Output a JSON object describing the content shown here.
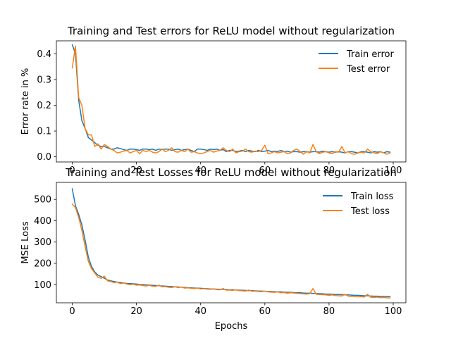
{
  "chart_data": [
    {
      "type": "line",
      "title": "Training and Test errors for ReLU model without regularization",
      "xlabel": "",
      "ylabel": "Error rate in %",
      "xlim": [
        -4.95,
        103.95
      ],
      "ylim": [
        -0.02,
        0.45
      ],
      "xticks": [
        0,
        20,
        40,
        60,
        80,
        100
      ],
      "yticks": [
        0.0,
        0.1,
        0.2,
        0.3,
        0.4
      ],
      "ytick_labels": [
        "0.0",
        "0.1",
        "0.2",
        "0.3",
        "0.4"
      ],
      "legend_position": "upper-right",
      "series": [
        {
          "name": "Train error",
          "color": "#1f77b4",
          "values": [
            0.435,
            0.4,
            0.22,
            0.14,
            0.11,
            0.075,
            0.065,
            0.055,
            0.045,
            0.04,
            0.04,
            0.035,
            0.03,
            0.03,
            0.035,
            0.032,
            0.028,
            0.025,
            0.03,
            0.03,
            0.028,
            0.025,
            0.03,
            0.03,
            0.028,
            0.03,
            0.025,
            0.03,
            0.028,
            0.03,
            0.03,
            0.025,
            0.028,
            0.03,
            0.025,
            0.028,
            0.03,
            0.025,
            0.02,
            0.03,
            0.03,
            0.028,
            0.025,
            0.03,
            0.028,
            0.03,
            0.025,
            0.028,
            0.02,
            0.025,
            0.025,
            0.02,
            0.022,
            0.025,
            0.02,
            0.025,
            0.022,
            0.02,
            0.025,
            0.02,
            0.022,
            0.025,
            0.02,
            0.022,
            0.02,
            0.025,
            0.02,
            0.022,
            0.018,
            0.02,
            0.02,
            0.018,
            0.02,
            0.02,
            0.018,
            0.02,
            0.02,
            0.018,
            0.022,
            0.02,
            0.018,
            0.02,
            0.018,
            0.02,
            0.018,
            0.015,
            0.02,
            0.02,
            0.018,
            0.015,
            0.02,
            0.02,
            0.018,
            0.015,
            0.02,
            0.018,
            0.02,
            0.015,
            0.02,
            0.018
          ]
        },
        {
          "name": "Test error",
          "color": "#ff7f0e",
          "values": [
            0.345,
            0.43,
            0.23,
            0.2,
            0.11,
            0.085,
            0.085,
            0.04,
            0.05,
            0.03,
            0.048,
            0.04,
            0.03,
            0.025,
            0.015,
            0.018,
            0.022,
            0.025,
            0.015,
            0.02,
            0.025,
            0.012,
            0.025,
            0.02,
            0.025,
            0.018,
            0.015,
            0.02,
            0.03,
            0.02,
            0.025,
            0.035,
            0.02,
            0.018,
            0.025,
            0.02,
            0.03,
            0.018,
            0.02,
            0.015,
            0.012,
            0.015,
            0.02,
            0.025,
            0.018,
            0.022,
            0.025,
            0.035,
            0.025,
            0.02,
            0.03,
            0.015,
            0.02,
            0.022,
            0.03,
            0.02,
            0.018,
            0.022,
            0.02,
            0.025,
            0.045,
            0.012,
            0.015,
            0.02,
            0.015,
            0.018,
            0.02,
            0.012,
            0.015,
            0.025,
            0.03,
            0.02,
            0.01,
            0.02,
            0.015,
            0.048,
            0.02,
            0.012,
            0.018,
            0.02,
            0.015,
            0.012,
            0.02,
            0.018,
            0.04,
            0.015,
            0.02,
            0.012,
            0.01,
            0.015,
            0.018,
            0.015,
            0.03,
            0.02,
            0.015,
            0.012,
            0.02,
            0.015,
            0.01,
            0.015
          ]
        }
      ]
    },
    {
      "type": "line",
      "title": "Training and Test Losses for ReLU model without regularization",
      "xlabel": "Epochs",
      "ylabel": "MSE Loss",
      "xlim": [
        -4.95,
        103.95
      ],
      "ylim": [
        15,
        580
      ],
      "xticks": [
        0,
        20,
        40,
        60,
        80,
        100
      ],
      "yticks": [
        100,
        200,
        300,
        400,
        500
      ],
      "ytick_labels": [
        "100",
        "200",
        "300",
        "400",
        "500"
      ],
      "legend_position": "upper-right",
      "series": [
        {
          "name": "Train loss",
          "color": "#1f77b4",
          "values": [
            550,
            470,
            430,
            380,
            310,
            230,
            185,
            160,
            145,
            138,
            130,
            122,
            118,
            115,
            112,
            110,
            108,
            106,
            105,
            104,
            103,
            101,
            100,
            99,
            98,
            97,
            96,
            95,
            94,
            93,
            92,
            91,
            90,
            89,
            88,
            87,
            86,
            85,
            84,
            84,
            83,
            82,
            81,
            80,
            80,
            79,
            78,
            78,
            77,
            76,
            76,
            75,
            74,
            74,
            73,
            72,
            72,
            71,
            70,
            70,
            69,
            68,
            68,
            67,
            66,
            66,
            65,
            64,
            64,
            63,
            62,
            62,
            61,
            60,
            60,
            59,
            58,
            58,
            57,
            56,
            56,
            55,
            54,
            54,
            53,
            52,
            52,
            51,
            50,
            50,
            49,
            48,
            48,
            47,
            46,
            46,
            45,
            45,
            44,
            44
          ]
        },
        {
          "name": "Test loss",
          "color": "#ff7f0e",
          "values": [
            478,
            462,
            415,
            355,
            280,
            210,
            175,
            155,
            135,
            130,
            140,
            118,
            115,
            110,
            112,
            105,
            108,
            103,
            100,
            102,
            98,
            99,
            96,
            94,
            97,
            93,
            92,
            98,
            90,
            91,
            88,
            87,
            90,
            86,
            89,
            84,
            85,
            83,
            82,
            84,
            80,
            81,
            79,
            78,
            80,
            77,
            76,
            82,
            74,
            75,
            73,
            76,
            72,
            71,
            70,
            75,
            69,
            70,
            68,
            67,
            70,
            66,
            65,
            64,
            66,
            62,
            63,
            60,
            62,
            61,
            59,
            58,
            57,
            56,
            58,
            82,
            55,
            54,
            53,
            52,
            50,
            52,
            49,
            48,
            47,
            55,
            46,
            45,
            44,
            43,
            44,
            42,
            55,
            41,
            40,
            42,
            39,
            40,
            38,
            38
          ]
        }
      ]
    }
  ]
}
